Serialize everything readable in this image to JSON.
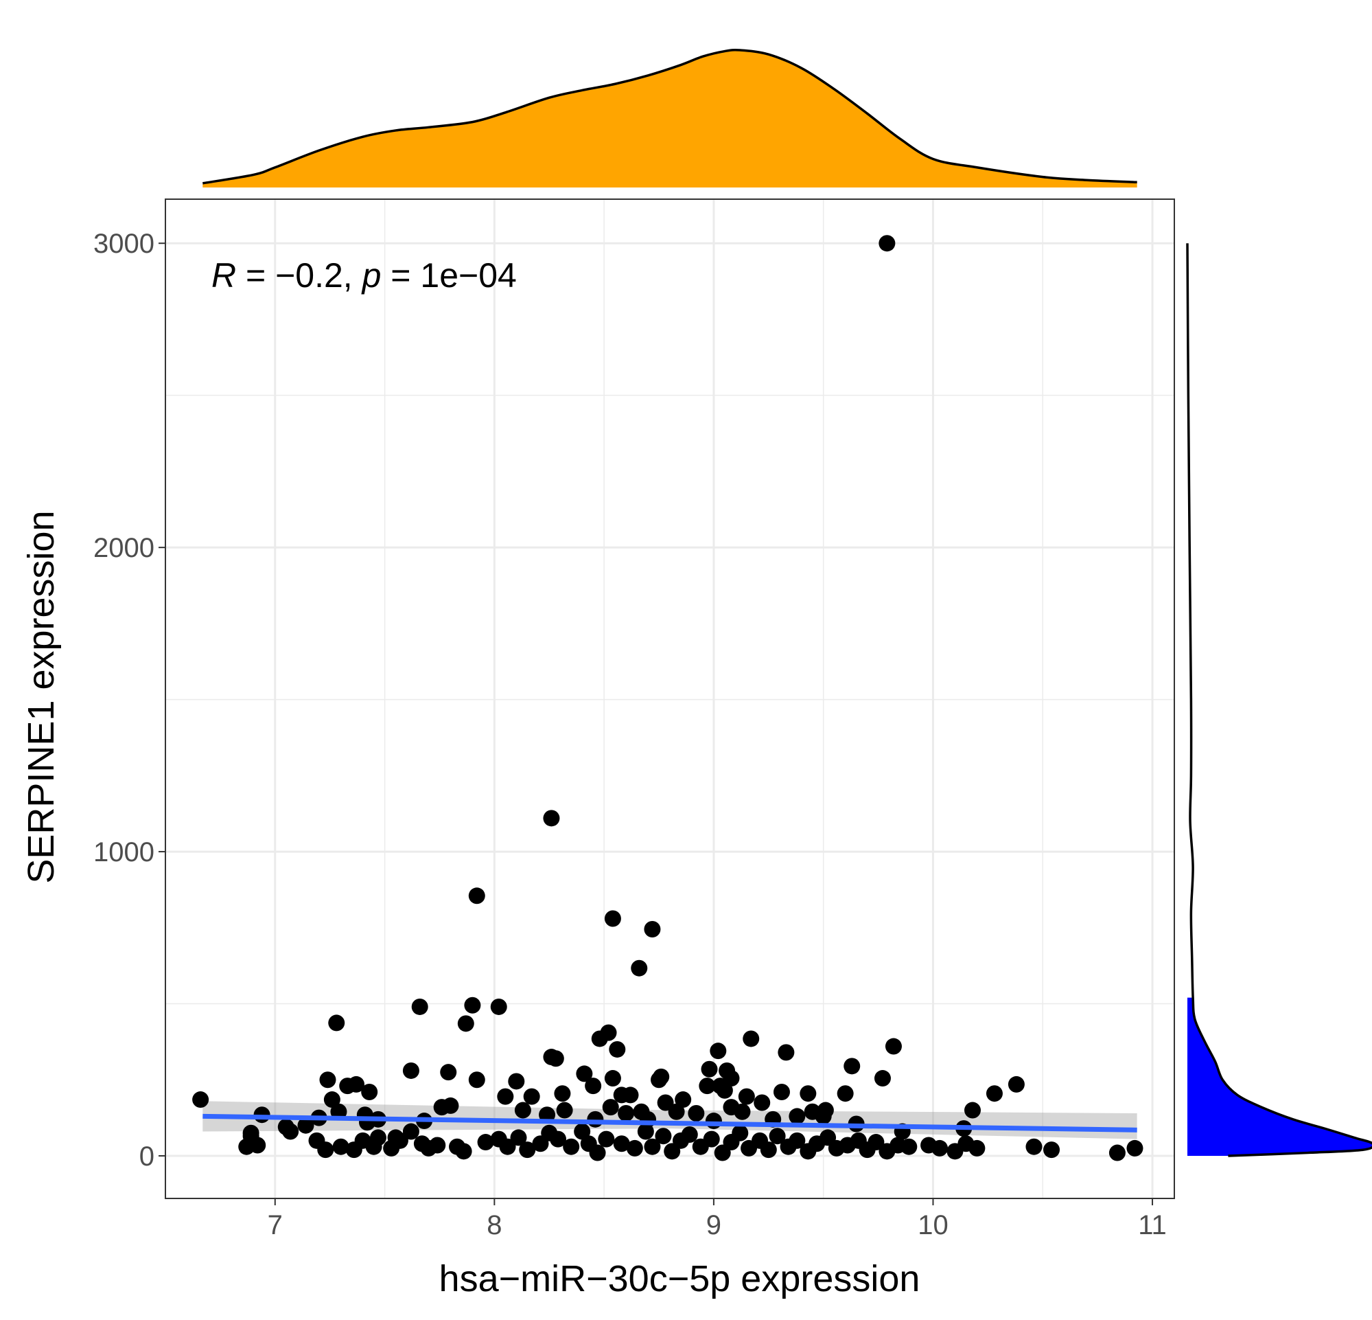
{
  "chart_data": {
    "type": "scatter",
    "xlabel": "hsa−miR−30c−5p expression",
    "ylabel": "SERPINE1 expression",
    "xlim": [
      6.5,
      11.1
    ],
    "ylim": [
      -140,
      3145
    ],
    "x_ticks": [
      7,
      8,
      9,
      10,
      11
    ],
    "y_ticks": [
      0,
      1000,
      2000,
      3000
    ],
    "x_tick_labels": [
      "7",
      "8",
      "9",
      "10",
      "11"
    ],
    "y_tick_labels": [
      "0",
      "1000",
      "2000",
      "3000"
    ],
    "grid": true,
    "annotation": {
      "r_symbol": "R",
      "r_text": " = −0.2, ",
      "p_symbol": "p",
      "p_text": " = 1e−04"
    },
    "regression": {
      "method": "linear",
      "color": "#3366FF",
      "start": [
        6.67,
        130
      ],
      "end": [
        10.93,
        85
      ],
      "ci_start": [
        80,
        180
      ],
      "ci_end": [
        55,
        140
      ],
      "ci_mid": [
        90,
        150
      ],
      "ci_mid_x": 8.8
    },
    "marginal_x": {
      "type": "density",
      "fill": "#FFA500",
      "x": [
        6.67,
        6.9,
        7.0,
        7.2,
        7.4,
        7.55,
        7.7,
        7.9,
        8.05,
        8.25,
        8.4,
        8.55,
        8.7,
        8.85,
        8.95,
        9.05,
        9.12,
        9.25,
        9.4,
        9.55,
        9.7,
        9.85,
        10.0,
        10.2,
        10.5,
        10.7,
        10.93
      ],
      "density": [
        0.04,
        0.12,
        0.19,
        0.35,
        0.48,
        0.54,
        0.57,
        0.62,
        0.71,
        0.85,
        0.92,
        0.98,
        1.06,
        1.16,
        1.24,
        1.29,
        1.3,
        1.26,
        1.13,
        0.93,
        0.7,
        0.46,
        0.27,
        0.19,
        0.1,
        0.07,
        0.05
      ]
    },
    "marginal_y": {
      "type": "density",
      "fill": "#0000FF",
      "y": [
        3000,
        2500,
        2000,
        1500,
        1250,
        1100,
        950,
        800,
        650,
        520,
        450,
        380,
        310,
        250,
        200,
        160,
        120,
        90,
        60,
        40,
        20,
        10,
        0
      ],
      "density": [
        0.0,
        0.005,
        0.012,
        0.02,
        0.02,
        0.015,
        0.03,
        0.02,
        0.025,
        0.03,
        0.04,
        0.09,
        0.15,
        0.19,
        0.27,
        0.4,
        0.57,
        0.74,
        0.9,
        1.0,
        0.95,
        0.65,
        0.22
      ]
    },
    "points": [
      [
        9.79,
        3000
      ],
      [
        8.26,
        1110
      ],
      [
        7.92,
        855
      ],
      [
        8.54,
        780
      ],
      [
        8.72,
        745
      ],
      [
        8.66,
        617
      ],
      [
        7.28,
        437
      ],
      [
        7.66,
        490
      ],
      [
        7.9,
        495
      ],
      [
        8.02,
        490
      ],
      [
        7.87,
        435
      ],
      [
        8.52,
        405
      ],
      [
        8.48,
        385
      ],
      [
        8.56,
        350
      ],
      [
        8.26,
        325
      ],
      [
        8.28,
        320
      ],
      [
        9.17,
        385
      ],
      [
        9.02,
        345
      ],
      [
        9.33,
        340
      ],
      [
        9.82,
        360
      ],
      [
        9.63,
        295
      ],
      [
        9.77,
        255
      ],
      [
        7.62,
        280
      ],
      [
        7.79,
        275
      ],
      [
        7.92,
        250
      ],
      [
        8.1,
        245
      ],
      [
        8.41,
        270
      ],
      [
        8.54,
        255
      ],
      [
        8.76,
        260
      ],
      [
        8.75,
        250
      ],
      [
        8.98,
        285
      ],
      [
        9.06,
        280
      ],
      [
        9.08,
        255
      ],
      [
        9.03,
        230
      ],
      [
        8.97,
        230
      ],
      [
        7.24,
        250
      ],
      [
        7.33,
        230
      ],
      [
        7.37,
        235
      ],
      [
        7.43,
        210
      ],
      [
        8.05,
        195
      ],
      [
        8.17,
        195
      ],
      [
        8.31,
        205
      ],
      [
        8.45,
        230
      ],
      [
        8.58,
        200
      ],
      [
        8.62,
        200
      ],
      [
        8.78,
        175
      ],
      [
        8.86,
        185
      ],
      [
        9.05,
        215
      ],
      [
        9.15,
        195
      ],
      [
        9.22,
        175
      ],
      [
        9.31,
        210
      ],
      [
        9.43,
        205
      ],
      [
        9.6,
        205
      ],
      [
        9.45,
        145
      ],
      [
        9.51,
        150
      ],
      [
        10.28,
        205
      ],
      [
        10.38,
        235
      ],
      [
        10.18,
        150
      ],
      [
        10.14,
        90
      ],
      [
        6.66,
        185
      ],
      [
        6.94,
        135
      ],
      [
        6.89,
        75
      ],
      [
        7.05,
        95
      ],
      [
        7.14,
        100
      ],
      [
        7.2,
        125
      ],
      [
        7.26,
        185
      ],
      [
        7.29,
        145
      ],
      [
        7.41,
        135
      ],
      [
        7.42,
        110
      ],
      [
        7.47,
        120
      ],
      [
        7.55,
        60
      ],
      [
        7.68,
        115
      ],
      [
        7.76,
        160
      ],
      [
        7.8,
        165
      ],
      [
        8.13,
        150
      ],
      [
        8.24,
        135
      ],
      [
        8.32,
        150
      ],
      [
        8.46,
        120
      ],
      [
        8.53,
        160
      ],
      [
        8.6,
        140
      ],
      [
        8.67,
        145
      ],
      [
        8.7,
        120
      ],
      [
        8.83,
        145
      ],
      [
        8.92,
        140
      ],
      [
        9.0,
        115
      ],
      [
        9.08,
        160
      ],
      [
        9.13,
        145
      ],
      [
        9.27,
        120
      ],
      [
        9.38,
        130
      ],
      [
        9.5,
        130
      ],
      [
        9.65,
        105
      ],
      [
        9.86,
        80
      ],
      [
        6.87,
        30
      ],
      [
        6.89,
        65
      ],
      [
        6.92,
        35
      ],
      [
        7.07,
        80
      ],
      [
        7.19,
        50
      ],
      [
        7.23,
        20
      ],
      [
        7.3,
        30
      ],
      [
        7.36,
        20
      ],
      [
        7.4,
        50
      ],
      [
        7.45,
        30
      ],
      [
        7.47,
        60
      ],
      [
        7.53,
        25
      ],
      [
        7.57,
        50
      ],
      [
        7.62,
        80
      ],
      [
        7.67,
        40
      ],
      [
        7.7,
        25
      ],
      [
        7.74,
        35
      ],
      [
        7.83,
        30
      ],
      [
        7.86,
        15
      ],
      [
        7.96,
        45
      ],
      [
        8.02,
        55
      ],
      [
        8.06,
        30
      ],
      [
        8.11,
        60
      ],
      [
        8.15,
        20
      ],
      [
        8.21,
        40
      ],
      [
        8.25,
        75
      ],
      [
        8.29,
        55
      ],
      [
        8.35,
        30
      ],
      [
        8.4,
        80
      ],
      [
        8.43,
        40
      ],
      [
        8.47,
        10
      ],
      [
        8.51,
        55
      ],
      [
        8.58,
        40
      ],
      [
        8.64,
        25
      ],
      [
        8.69,
        80
      ],
      [
        8.72,
        30
      ],
      [
        8.77,
        65
      ],
      [
        8.81,
        15
      ],
      [
        8.85,
        50
      ],
      [
        8.89,
        70
      ],
      [
        8.94,
        30
      ],
      [
        8.99,
        55
      ],
      [
        9.04,
        10
      ],
      [
        9.08,
        45
      ],
      [
        9.12,
        75
      ],
      [
        9.16,
        25
      ],
      [
        9.21,
        50
      ],
      [
        9.25,
        20
      ],
      [
        9.29,
        65
      ],
      [
        9.34,
        30
      ],
      [
        9.38,
        50
      ],
      [
        9.43,
        15
      ],
      [
        9.47,
        40
      ],
      [
        9.52,
        60
      ],
      [
        9.56,
        25
      ],
      [
        9.61,
        35
      ],
      [
        9.66,
        50
      ],
      [
        9.7,
        20
      ],
      [
        9.74,
        45
      ],
      [
        9.79,
        15
      ],
      [
        9.84,
        35
      ],
      [
        9.89,
        30
      ],
      [
        9.98,
        35
      ],
      [
        10.03,
        25
      ],
      [
        10.1,
        15
      ],
      [
        10.15,
        40
      ],
      [
        10.2,
        25
      ],
      [
        10.46,
        30
      ],
      [
        10.54,
        20
      ],
      [
        10.84,
        10
      ],
      [
        10.92,
        25
      ]
    ]
  }
}
